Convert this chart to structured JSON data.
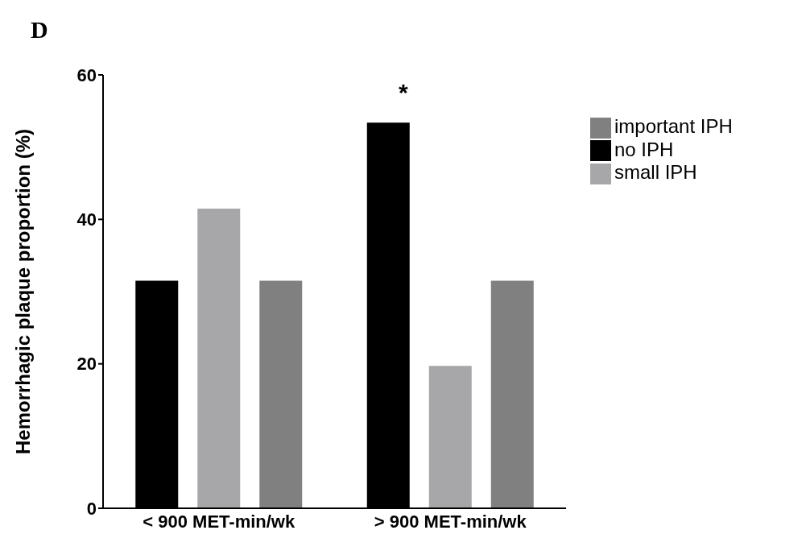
{
  "chart_data": {
    "type": "bar",
    "title": "D",
    "ylabel": "Hemorrhagic plaque proportion (%)",
    "categories": [
      "< 900 MET-min/wk",
      "> 900 MET-min/wk"
    ],
    "series": [
      {
        "name": "no IPH",
        "color": "#000000",
        "values": [
          31.5,
          53.4
        ]
      },
      {
        "name": "small IPH",
        "color": "#a7a7a9",
        "values": [
          41.5,
          19.7
        ]
      },
      {
        "name": "important IPH",
        "color": "#808080",
        "values": [
          31.5,
          31.5
        ]
      }
    ],
    "ylim": [
      0,
      60
    ],
    "yticks": [
      0,
      20,
      40,
      60
    ],
    "grid": false,
    "legend": "top right",
    "annotations": [
      "*"
    ]
  }
}
